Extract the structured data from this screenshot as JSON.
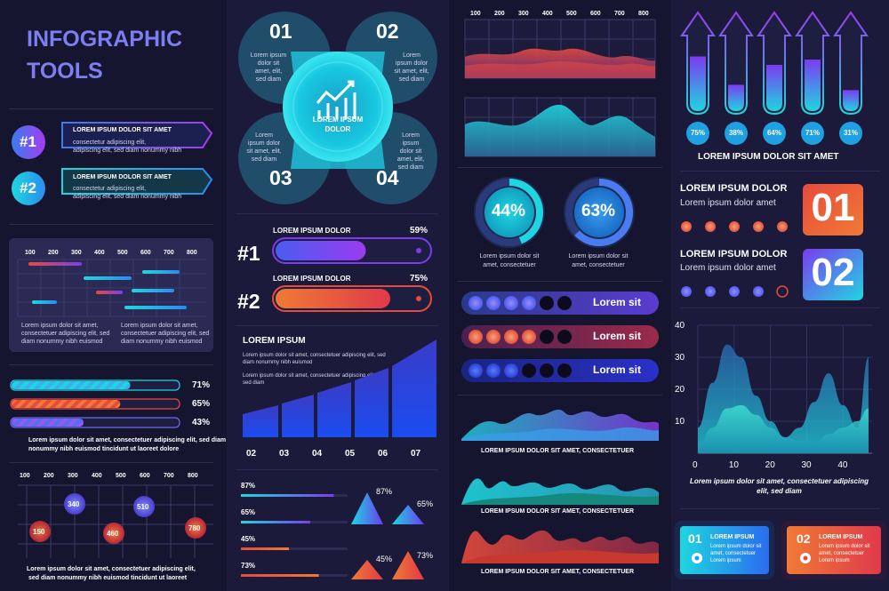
{
  "col1": {
    "title": [
      "INFOGRAPHIC",
      "TOOLS"
    ],
    "tags": [
      {
        "label": "#1",
        "text": "LOREM IPSUM DOLOR SIT AMET",
        "desc": [
          "consectetur adipiscing elit,",
          "adipiscing elit, sed diam nonummy nibh"
        ]
      },
      {
        "label": "#2",
        "text": "LOREM IPSUM DOLOR SIT AMET",
        "desc": [
          "consectetur adipiscing elit,",
          "adipiscing elit, sed diam nonummy nibh"
        ]
      }
    ],
    "gantt_axis": [
      "100",
      "200",
      "300",
      "400",
      "500",
      "600",
      "700",
      "800"
    ],
    "gantt_desc": [
      [
        "Lorem ipsum dolor sit amet,",
        "consectetuer adipiscing elit, sed",
        "diam nonummy nibh euismod"
      ],
      [
        "Lorem ipsum dolor sit amet,",
        "consectetuer adipiscing elit, sed",
        "diam nonummy nibh euismod"
      ]
    ],
    "progress": [
      {
        "value": 0.71,
        "label": "71%"
      },
      {
        "value": 0.65,
        "label": "65%"
      },
      {
        "value": 0.43,
        "label": "43%"
      }
    ],
    "progress_caption": [
      "Lorem ipsum dolor sit amet, consectetuer adipiscing elit, sed diam",
      "nonummy nibh euismod tincidunt ut laoreet dolore"
    ],
    "bubble_axis": [
      "100",
      "200",
      "300",
      "400",
      "500",
      "600",
      "700",
      "800"
    ],
    "bubbles": [
      {
        "label": "150",
        "color": "#e84a3c"
      },
      {
        "label": "340",
        "color": "#6a5cf0"
      },
      {
        "label": "460",
        "color": "#e84a3c"
      },
      {
        "label": "510",
        "color": "#4f7cf0"
      },
      {
        "label": "780",
        "color": "#e84a3c"
      }
    ],
    "bubble_caption": [
      "Lorem ipsum dolor sit amet, consectetuer adipiscing elit,",
      "sed diam nonummy nibh euismod tincidunt ut laoreet"
    ]
  },
  "col2": {
    "petals": [
      {
        "n": "01",
        "txt": [
          "Lorem ipsum",
          "dolor sit",
          "amet, elit,",
          "sed diam"
        ]
      },
      {
        "n": "02",
        "txt": [
          "Lorem",
          "ipsum dolor",
          "sit amet, elit,",
          "sed diam"
        ]
      },
      {
        "n": "03",
        "txt": [
          "Lorem",
          "ipsum dolor",
          "sit amet, elit,",
          "sed diam"
        ]
      },
      {
        "n": "04",
        "txt": [
          "Lorem",
          "ipsum",
          "dolor sit",
          "amet, elit,",
          "sed diam"
        ]
      }
    ],
    "center": [
      "LOREM IPSUM",
      "DOLOR"
    ],
    "bars": [
      {
        "label": "#1",
        "title": "LOREM IPSUM DOLOR",
        "pct": "59%",
        "value": 0.59
      },
      {
        "label": "#2",
        "title": "LOREM IPSUM DOLOR",
        "pct": "75%",
        "value": 0.75
      }
    ],
    "stair_title": "LOREM IPSUM",
    "stair_desc": [
      [
        "Lorem ipsum dolor sit amet, consectetuer adipiscing elit, sed",
        "diam nonummy nibh euismod"
      ],
      [
        "Lorem ipsum dolor sit amet, consectetuer adipiscing elit,",
        "sed diam"
      ]
    ],
    "stair_axis": [
      "02",
      "03",
      "04",
      "05",
      "06",
      "07"
    ],
    "hbars": [
      {
        "label": "87%",
        "value": 0.87
      },
      {
        "label": "65%",
        "value": 0.65
      },
      {
        "label": "45%",
        "value": 0.45
      },
      {
        "label": "73%",
        "value": 0.73
      }
    ],
    "tri_labels": [
      "87%",
      "65%",
      "45%",
      "73%"
    ]
  },
  "col3": {
    "axis": [
      "100",
      "200",
      "300",
      "400",
      "500",
      "600",
      "700",
      "800"
    ],
    "donuts": [
      {
        "label": "44%",
        "value": 0.44,
        "desc": [
          "Lorem ipsum dolor sit",
          "amet, consectetuer"
        ]
      },
      {
        "label": "63%",
        "value": 0.63,
        "desc": [
          "Lorem ipsum dolor sit",
          "amet, consectetuer"
        ]
      }
    ],
    "dotbars": [
      {
        "label": "Lorem sit",
        "filled": 4,
        "color": "#3d5cf0"
      },
      {
        "label": "Lorem sit",
        "filled": 4,
        "color": "#e0523f"
      },
      {
        "label": "Lorem sit",
        "filled": 3,
        "color": "#2b40d8"
      }
    ],
    "waves": [
      "LOREM IPSUM DOLOR SIT AMET, CONSECTETUER",
      "LOREM IPSUM DOLOR SIT AMET, CONSECTETUER",
      "LOREM IPSUM DOLOR SIT AMET, CONSECTETUER"
    ]
  },
  "col4": {
    "arrows": [
      {
        "label": "75%",
        "value": 0.75
      },
      {
        "label": "38%",
        "value": 0.38
      },
      {
        "label": "64%",
        "value": 0.64
      },
      {
        "label": "71%",
        "value": 0.71
      },
      {
        "label": "31%",
        "value": 0.31
      }
    ],
    "arrows_title": "LOREM IPSUM DOLOR SIT AMET",
    "steps": [
      {
        "title": "LOREM IPSUM DOLOR",
        "sub": "Lorem ipsum dolor amet",
        "num": "01",
        "filled": 5
      },
      {
        "title": "LOREM IPSUM DOLOR",
        "sub": "Lorem ipsum dolor amet",
        "num": "02",
        "filled": 4
      }
    ],
    "chart_data": {
      "type": "area",
      "x_ticks": [
        "0",
        "10",
        "20",
        "30",
        "40"
      ],
      "y_ticks": [
        "10",
        "20",
        "30",
        "40"
      ],
      "ylim": [
        0,
        40
      ],
      "xlim": [
        0,
        48
      ],
      "series": [
        {
          "color": "#23c4d8",
          "x": [
            0,
            4,
            8,
            12,
            16,
            20,
            24,
            28,
            32,
            36,
            40,
            44,
            47
          ],
          "y": [
            8,
            22,
            34,
            30,
            18,
            10,
            5,
            8,
            16,
            25,
            15,
            8,
            30
          ]
        },
        {
          "color": "#3fe0d0",
          "x": [
            0,
            4,
            8,
            12,
            16,
            20,
            24,
            28,
            32,
            36,
            40,
            44,
            47
          ],
          "y": [
            2,
            8,
            14,
            15,
            12,
            8,
            5,
            4,
            3,
            6,
            8,
            10,
            14
          ]
        }
      ]
    },
    "caption": [
      "Lorem ipsum dolor sit amet, consectetuer adipiscing",
      "elit, sed diam"
    ],
    "cards": [
      {
        "num": "01",
        "title": "LOREM IPSUM",
        "desc": [
          "Lorem ipsum dolor sit",
          "amet, consectetuer",
          "Lorem ipsum"
        ]
      },
      {
        "num": "02",
        "title": "LOREM IPSUM",
        "desc": [
          "Lorem ipsum dolor sit",
          "amet, consectetuer",
          "Lorem ipsum"
        ]
      }
    ]
  },
  "colors": {
    "cyan": "#1fd6e0",
    "purple": "#7b3cf0",
    "red": "#e84a3c",
    "orange": "#f07a35",
    "bg": "#161530"
  }
}
